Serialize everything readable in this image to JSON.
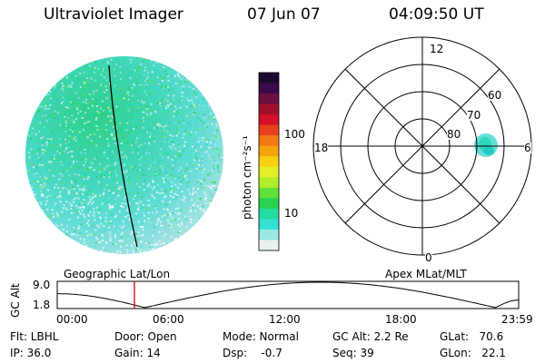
{
  "header": {
    "instrument": "Ultraviolet Imager",
    "date": "07 Jun 07",
    "time": "04:09:50 UT"
  },
  "colorbar": {
    "label": "photon cm⁻²s⁻¹",
    "ticks": [
      "100",
      "10"
    ],
    "colors": [
      "#1b0a2e",
      "#3a0b4a",
      "#6a1240",
      "#a0102a",
      "#d4102a",
      "#e8401c",
      "#f07a12",
      "#f5a50c",
      "#f7d012",
      "#e6ee2a",
      "#b0ee2a",
      "#62e03a",
      "#28d250",
      "#22dca0",
      "#34e0d2",
      "#9ae8e4",
      "#e8f0f0"
    ]
  },
  "polar": {
    "hour_labels": {
      "top": "12",
      "bottom": "0",
      "left": "18",
      "right": "6"
    },
    "lat_labels": [
      "60",
      "70",
      "80"
    ]
  },
  "labels": {
    "geographic": "Geographic Lat/Lon",
    "apex": "Apex MLat/MLT",
    "gc_alt_axis": "GC Alt"
  },
  "altitude_plot": {
    "y_ticks": [
      "9.0",
      "1.8"
    ],
    "x_ticks": [
      "00:00",
      "06:00",
      "12:00",
      "18:00",
      "23:59"
    ],
    "current_time_marker": "04:09:50"
  },
  "info": {
    "flt": "Flt: LBHL",
    "ip": "IP: 36.0",
    "door": "Door: Open",
    "gain": "Gain: 14",
    "mode": "Mode: Normal",
    "dsp": "Dsp:    -0.7",
    "gc_alt": "GC Alt: 2.2 Re",
    "seq": "Seq: 39",
    "glat": "GLat:   70.6",
    "glon": "GLon:   22.1"
  }
}
